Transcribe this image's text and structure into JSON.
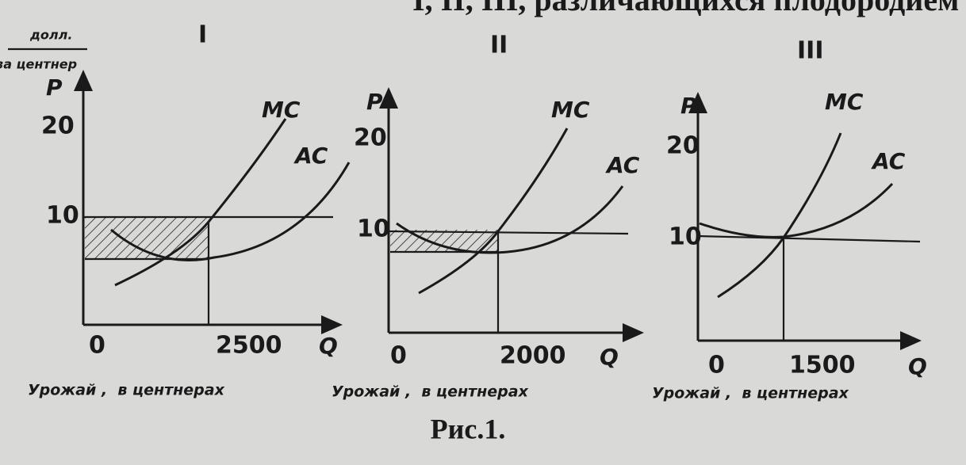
{
  "header_fragment": "I, II, III, различающихся плодородием",
  "units": {
    "top": "долл.",
    "bottom": "за центнер"
  },
  "panels": [
    {
      "numeral": "I",
      "y_axis": "P",
      "x_axis": "Q",
      "y_ticks": [
        20,
        10
      ],
      "origin": 0,
      "x_tick": 2500,
      "curves": [
        "MC",
        "AC"
      ],
      "x_caption": "Урожай ,  в центнерах"
    },
    {
      "numeral": "II",
      "y_axis": "P",
      "x_axis": "Q",
      "y_ticks": [
        20,
        10
      ],
      "origin": 0,
      "x_tick": 2000,
      "curves": [
        "MC",
        "AC"
      ],
      "x_caption": "Урожай ,  в центнерах"
    },
    {
      "numeral": "III",
      "y_axis": "P",
      "x_axis": "Q",
      "y_ticks": [
        20,
        10
      ],
      "origin": 0,
      "x_tick": 1500,
      "curves": [
        "MC",
        "AC"
      ],
      "x_caption": "Урожай ,  в центнерах"
    }
  ],
  "caption": "Рис.1."
}
